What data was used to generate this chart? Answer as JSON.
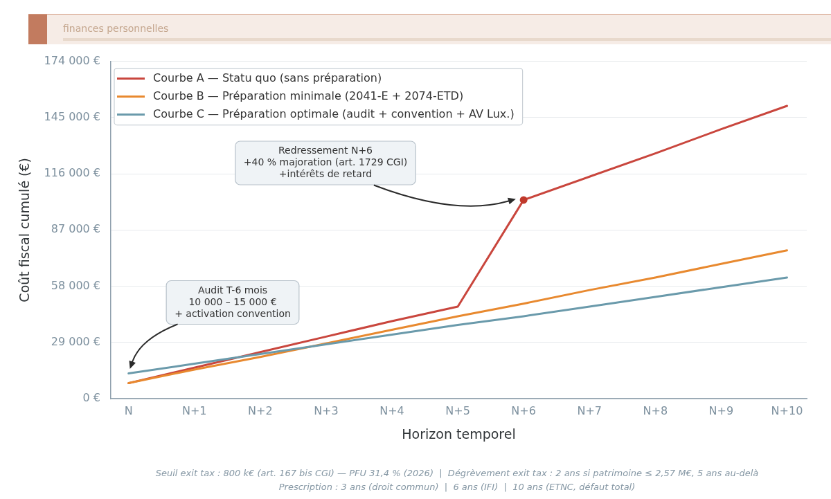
{
  "chart_data": {
    "type": "line",
    "subtitle": "finances personnelles",
    "xlabel": "Horizon temporel",
    "ylabel": "Coût fiscal cumulé (€)",
    "categories": [
      "N",
      "N+1",
      "N+2",
      "N+3",
      "N+4",
      "N+5",
      "N+6",
      "N+7",
      "N+8",
      "N+9",
      "N+10"
    ],
    "series": [
      {
        "name": "Courbe A — Statu quo (sans préparation)",
        "color": "#c9463d",
        "values": [
          8000,
          16000,
          24000,
          32000,
          40000,
          47500,
          102500,
          114500,
          126500,
          139000,
          151000
        ]
      },
      {
        "name": "Courbe B — Préparation minimale (2041-E + 2074-ETD)",
        "color": "#e8892f",
        "values": [
          8000,
          15000,
          21500,
          28500,
          35500,
          42500,
          49000,
          56000,
          62500,
          69500,
          76500
        ]
      },
      {
        "name": "Courbe C — Préparation optimale (audit + convention + AV Lux.)",
        "color": "#6a9aab",
        "values": [
          13000,
          18000,
          23000,
          28000,
          33000,
          38000,
          42500,
          47500,
          52500,
          57500,
          62500
        ]
      },
      {
        "type": "scatter",
        "color": "#c0392b",
        "marker": "circle",
        "values": [
          null,
          null,
          null,
          null,
          null,
          null,
          102500,
          null,
          null,
          null,
          null
        ]
      }
    ],
    "ylim": [
      0,
      174000
    ],
    "yticks": [
      {
        "value": 0,
        "label": "0 €"
      },
      {
        "value": 29000,
        "label": "29 000 €"
      },
      {
        "value": 58000,
        "label": "58 000 €"
      },
      {
        "value": 87000,
        "label": "87 000 €"
      },
      {
        "value": 116000,
        "label": "116 000 €"
      },
      {
        "value": 145000,
        "label": "145 000 €"
      },
      {
        "value": 174000,
        "label": "174 000 €"
      }
    ],
    "grid": "y",
    "legend": "top left",
    "annotations": [
      "Redressement N+6\n+40 % majoration (art. 1729 CGI)\n+intérêts de retard",
      "Audit T-6 mois\n10 000 – 15 000 €\n+ activation convention",
      "Seuil exit tax : 800 k€ (art. 167 bis CGI) — PFU 31,4 % (2026)  |  Dégrèvement exit tax : 2 ans si patrimoine ≤ 2,57 M€, 5 ans au-delà",
      "Prescription : 3 ans (droit commun)  |  6 ans (IFI)  |  10 ans (ETNC, défaut total)"
    ]
  }
}
